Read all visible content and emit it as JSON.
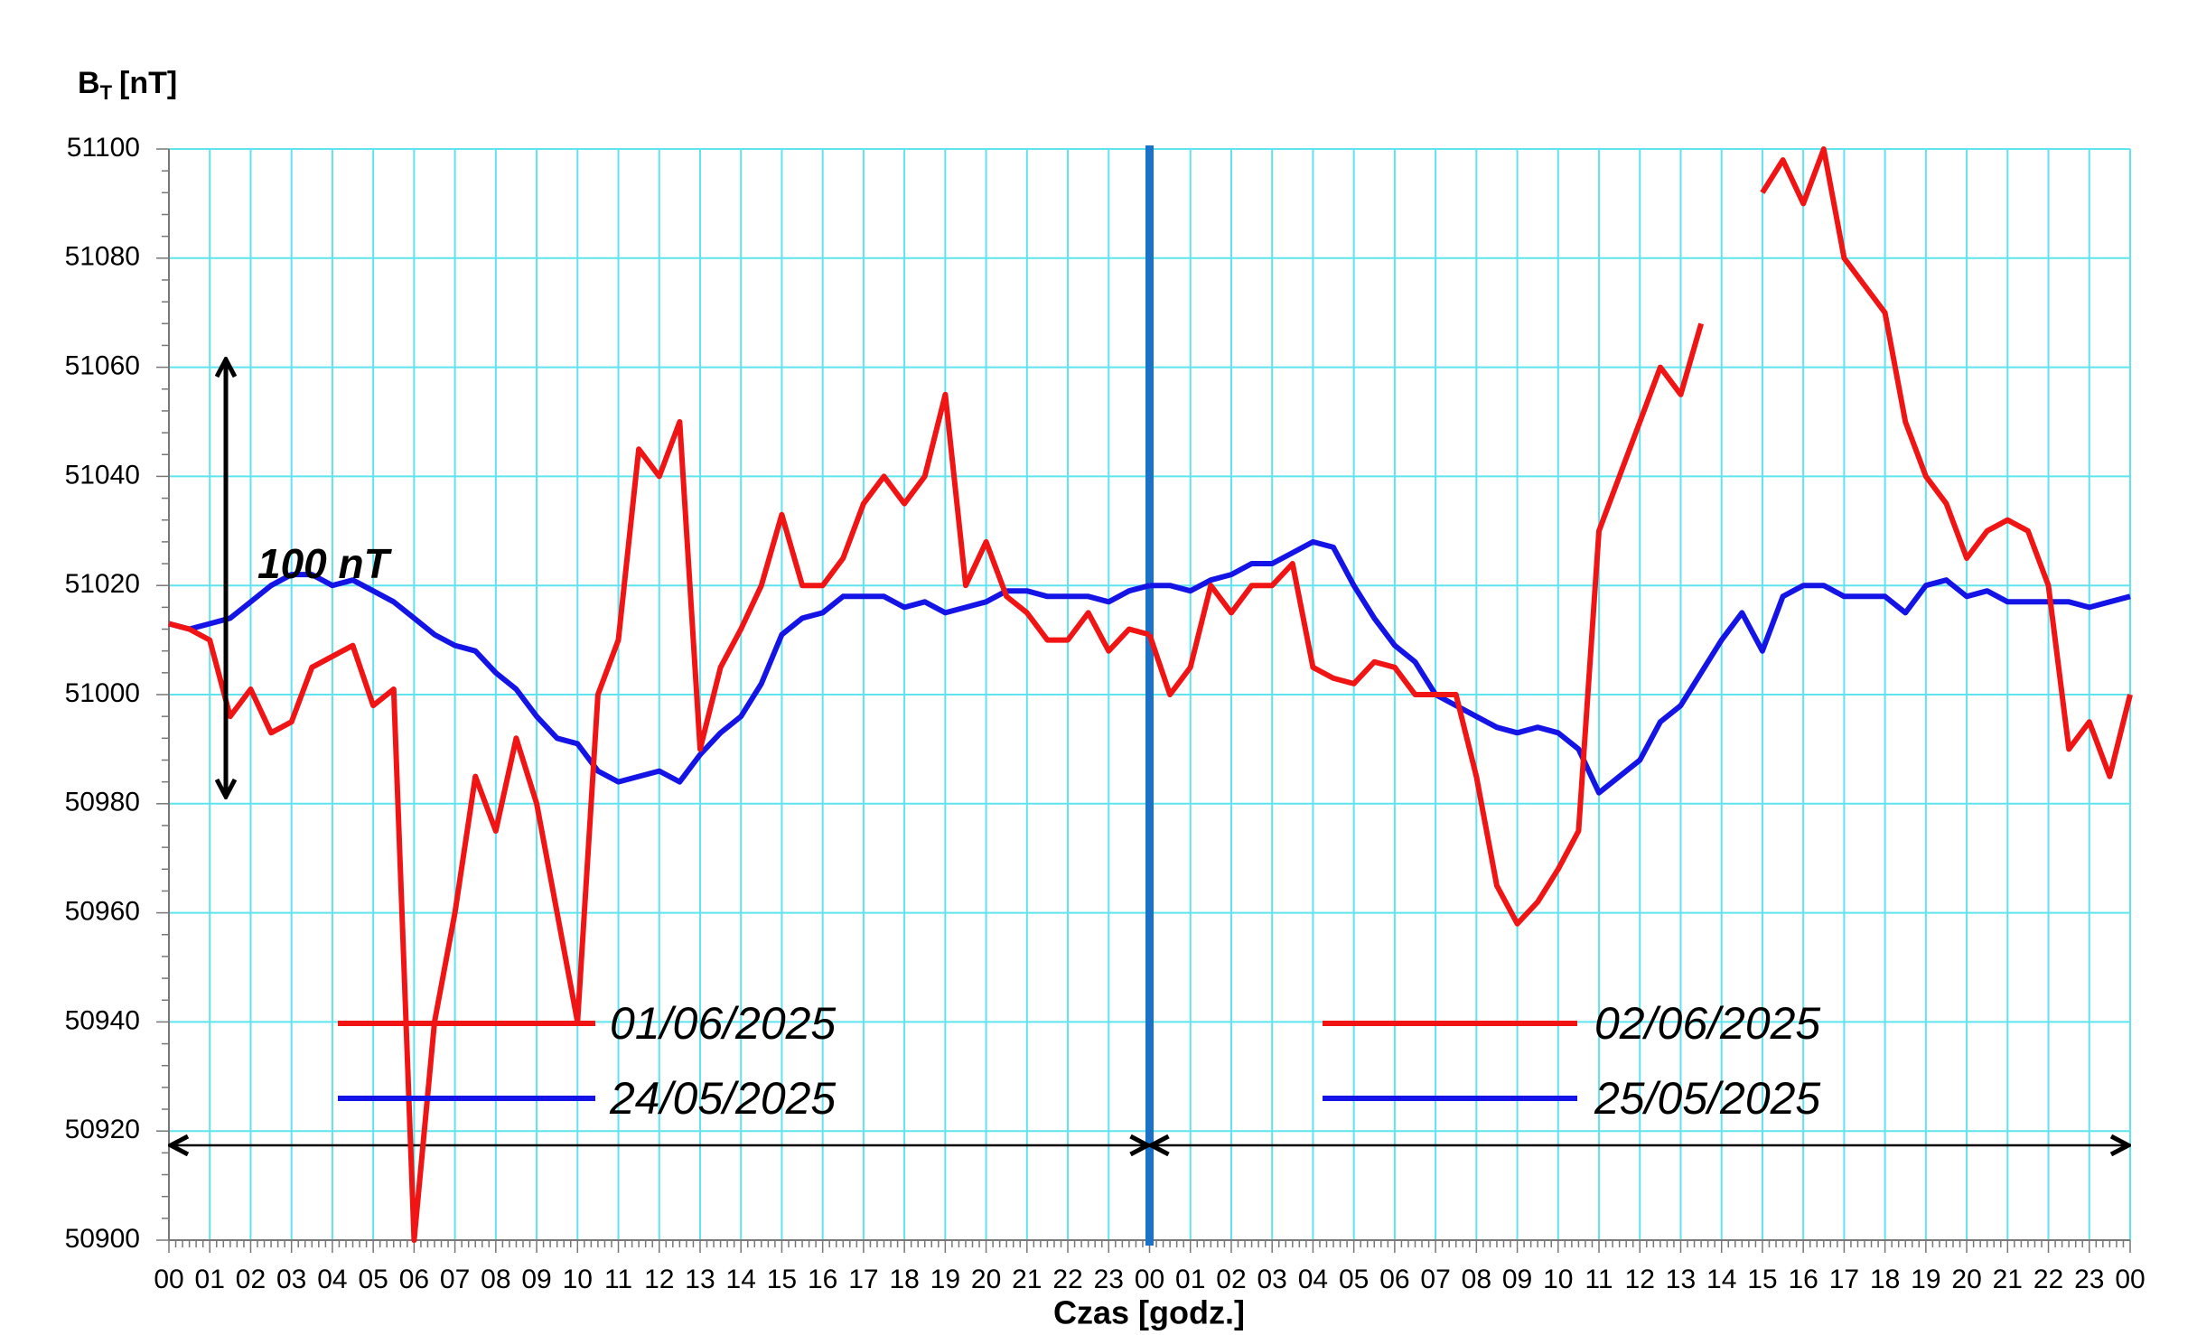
{
  "chart_data": {
    "type": "line",
    "ylabel": "B",
    "ylabel_sub": "T",
    "ylabel_unit": "[nT]",
    "xlabel": "Czas [godz.]",
    "annotation": "100 nT",
    "xlim": [
      0,
      48
    ],
    "ylim": [
      50900,
      51100
    ],
    "yticks": [
      50900,
      50920,
      50940,
      50960,
      50980,
      51000,
      51020,
      51040,
      51060,
      51080,
      51100
    ],
    "xticks": [
      {
        "value": 0,
        "label": "00"
      },
      {
        "value": 1,
        "label": "01"
      },
      {
        "value": 2,
        "label": "02"
      },
      {
        "value": 3,
        "label": "03"
      },
      {
        "value": 4,
        "label": "04"
      },
      {
        "value": 5,
        "label": "05"
      },
      {
        "value": 6,
        "label": "06"
      },
      {
        "value": 7,
        "label": "07"
      },
      {
        "value": 8,
        "label": "08"
      },
      {
        "value": 9,
        "label": "09"
      },
      {
        "value": 10,
        "label": "10"
      },
      {
        "value": 11,
        "label": "11"
      },
      {
        "value": 12,
        "label": "12"
      },
      {
        "value": 13,
        "label": "13"
      },
      {
        "value": 14,
        "label": "14"
      },
      {
        "value": 15,
        "label": "15"
      },
      {
        "value": 16,
        "label": "16"
      },
      {
        "value": 17,
        "label": "17"
      },
      {
        "value": 18,
        "label": "18"
      },
      {
        "value": 19,
        "label": "19"
      },
      {
        "value": 20,
        "label": "20"
      },
      {
        "value": 21,
        "label": "21"
      },
      {
        "value": 22,
        "label": "22"
      },
      {
        "value": 23,
        "label": "23"
      },
      {
        "value": 24,
        "label": "00"
      },
      {
        "value": 25,
        "label": "01"
      },
      {
        "value": 26,
        "label": "02"
      },
      {
        "value": 27,
        "label": "03"
      },
      {
        "value": 28,
        "label": "04"
      },
      {
        "value": 29,
        "label": "05"
      },
      {
        "value": 30,
        "label": "06"
      },
      {
        "value": 31,
        "label": "07"
      },
      {
        "value": 32,
        "label": "08"
      },
      {
        "value": 33,
        "label": "09"
      },
      {
        "value": 34,
        "label": "10"
      },
      {
        "value": 35,
        "label": "11"
      },
      {
        "value": 36,
        "label": "12"
      },
      {
        "value": 37,
        "label": "13"
      },
      {
        "value": 38,
        "label": "14"
      },
      {
        "value": 39,
        "label": "15"
      },
      {
        "value": 40,
        "label": "16"
      },
      {
        "value": 41,
        "label": "17"
      },
      {
        "value": 42,
        "label": "18"
      },
      {
        "value": 43,
        "label": "19"
      },
      {
        "value": 44,
        "label": "20"
      },
      {
        "value": 45,
        "label": "21"
      },
      {
        "value": 46,
        "label": "22"
      },
      {
        "value": 47,
        "label": "23"
      },
      {
        "value": 48,
        "label": "00"
      }
    ],
    "grid": true,
    "divider_color": "#1a73c8",
    "series": [
      {
        "name": "01/06/2025",
        "color": "#f01414",
        "x": [
          0,
          0.5,
          1,
          1.5,
          2,
          2.5,
          3,
          3.5,
          4,
          4.5,
          5,
          5.5,
          6,
          6.5,
          7,
          7.5,
          8,
          8.5,
          9,
          9.5,
          10,
          10.5,
          11,
          11.5,
          12,
          12.5,
          13,
          13.5,
          14,
          14.5,
          15,
          15.5,
          16,
          16.5,
          17,
          17.5,
          18,
          18.5,
          19,
          19.5,
          20,
          20.5,
          21,
          21.5,
          22,
          22.5,
          23,
          23.5,
          24
        ],
        "values": [
          51013,
          51012,
          51010,
          50996,
          51001,
          50993,
          50995,
          51005,
          51007,
          51009,
          50998,
          51001,
          50900,
          50940,
          50960,
          50985,
          50975,
          50992,
          50980,
          50960,
          50940,
          51000,
          51010,
          51045,
          51040,
          51050,
          50990,
          51005,
          51012,
          51020,
          51033,
          51020,
          51020,
          51025,
          51035,
          51040,
          51035,
          51040,
          51055,
          51020,
          51028,
          51018,
          51015,
          51010,
          51010,
          51015,
          51008,
          51012,
          51011
        ]
      },
      {
        "name": "24/05/2025",
        "color": "#1414e6",
        "x": [
          0,
          0.5,
          1,
          1.5,
          2,
          2.5,
          3,
          3.5,
          4,
          4.5,
          5,
          5.5,
          6,
          6.5,
          7,
          7.5,
          8,
          8.5,
          9,
          9.5,
          10,
          10.5,
          11,
          11.5,
          12,
          12.5,
          13,
          13.5,
          14,
          14.5,
          15,
          15.5,
          16,
          16.5,
          17,
          17.5,
          18,
          18.5,
          19,
          19.5,
          20,
          20.5,
          21,
          21.5,
          22,
          22.5,
          23,
          23.5,
          24
        ],
        "values": [
          51013,
          51012,
          51013,
          51014,
          51017,
          51020,
          51022,
          51022,
          51020,
          51021,
          51019,
          51017,
          51014,
          51011,
          51009,
          51008,
          51004,
          51001,
          50996,
          50992,
          50991,
          50986,
          50984,
          50985,
          50986,
          50984,
          50989,
          50993,
          50996,
          51002,
          51011,
          51014,
          51015,
          51018,
          51018,
          51018,
          51016,
          51017,
          51015,
          51016,
          51017,
          51019,
          51019,
          51018,
          51018,
          51018,
          51017,
          51019,
          51020
        ]
      },
      {
        "name": "02/06/2025",
        "color": "#f01414",
        "x": [
          24,
          24.5,
          25,
          25.5,
          26,
          26.5,
          27,
          27.5,
          28,
          28.5,
          29,
          29.5,
          30,
          30.5,
          31,
          31.5,
          32,
          32.5,
          33,
          33.5,
          34,
          34.5,
          35,
          35.5,
          36,
          36.5,
          37,
          37.5,
          38,
          38.5,
          39,
          39.5,
          40,
          40.5,
          41,
          41.5,
          42,
          42.5,
          43,
          43.5,
          44,
          44.5,
          45,
          45.5,
          46,
          46.5,
          47,
          47.5,
          48
        ],
        "values": [
          51011,
          51000,
          51005,
          51020,
          51015,
          51020,
          51020,
          51024,
          51005,
          51003,
          51002,
          51006,
          51005,
          51000,
          51000,
          51000,
          50985,
          50965,
          50958,
          50962,
          50968,
          50975,
          51030,
          51040,
          51050,
          51060,
          51055,
          51068,
          null,
          null,
          51092,
          51098,
          51090,
          51100,
          51080,
          51075,
          51070,
          51050,
          51040,
          51035,
          51025,
          51030,
          51032,
          51030,
          51020,
          50990,
          50995,
          50985,
          51000
        ]
      },
      {
        "name": "25/05/2025",
        "color": "#1414e6",
        "x": [
          24,
          24.5,
          25,
          25.5,
          26,
          26.5,
          27,
          27.5,
          28,
          28.5,
          29,
          29.5,
          30,
          30.5,
          31,
          31.5,
          32,
          32.5,
          33,
          33.5,
          34,
          34.5,
          35,
          35.5,
          36,
          36.5,
          37,
          37.5,
          38,
          38.5,
          39,
          39.5,
          40,
          40.5,
          41,
          41.5,
          42,
          42.5,
          43,
          43.5,
          44,
          44.5,
          45,
          45.5,
          46,
          46.5,
          47,
          47.5,
          48
        ],
        "values": [
          51020,
          51020,
          51019,
          51021,
          51022,
          51024,
          51024,
          51026,
          51028,
          51027,
          51020,
          51014,
          51009,
          51006,
          51000,
          50998,
          50996,
          50994,
          50993,
          50994,
          50993,
          50990,
          50982,
          50985,
          50988,
          50995,
          50998,
          51004,
          51010,
          51015,
          51008,
          51018,
          51020,
          51020,
          51018,
          51018,
          51018,
          51015,
          51020,
          51021,
          51018,
          51019,
          51017,
          51017,
          51017,
          51017,
          51016,
          51017,
          51018
        ]
      }
    ]
  }
}
